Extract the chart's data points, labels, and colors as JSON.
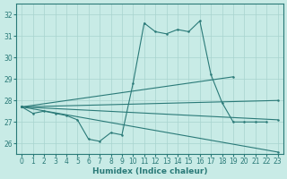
{
  "xlabel": "Humidex (Indice chaleur)",
  "xlim": [
    -0.5,
    23.5
  ],
  "ylim": [
    25.5,
    32.5
  ],
  "yticks": [
    26,
    27,
    28,
    29,
    30,
    31,
    32
  ],
  "xticks": [
    0,
    1,
    2,
    3,
    4,
    5,
    6,
    7,
    8,
    9,
    10,
    11,
    12,
    13,
    14,
    15,
    16,
    17,
    18,
    19,
    20,
    21,
    22,
    23
  ],
  "background_color": "#c8ebe6",
  "grid_color": "#a8d4ce",
  "line_color": "#2a7a78",
  "line1_x": [
    0,
    1,
    2,
    3,
    4,
    5,
    6,
    7,
    8,
    9,
    10,
    11,
    12,
    13,
    14,
    15,
    16,
    17,
    18,
    19,
    20,
    21,
    22
  ],
  "line1_y": [
    27.7,
    27.4,
    27.5,
    27.4,
    27.3,
    27.1,
    26.2,
    26.1,
    26.5,
    26.4,
    28.8,
    31.6,
    31.2,
    31.1,
    31.3,
    31.2,
    31.7,
    29.2,
    27.9,
    27.0,
    27.0,
    27.0,
    27.0
  ],
  "fan_lines": [
    {
      "x": [
        0,
        23
      ],
      "y": [
        27.7,
        25.6
      ]
    },
    {
      "x": [
        0,
        23
      ],
      "y": [
        27.7,
        27.1
      ]
    },
    {
      "x": [
        0,
        23
      ],
      "y": [
        27.7,
        28.0
      ]
    },
    {
      "x": [
        0,
        19
      ],
      "y": [
        27.7,
        29.1
      ]
    }
  ]
}
